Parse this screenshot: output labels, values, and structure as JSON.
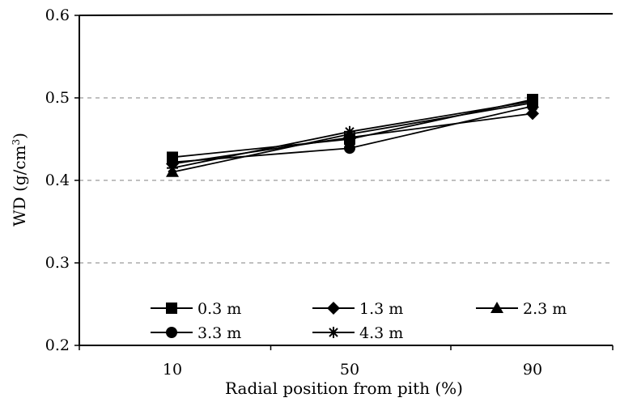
{
  "chart_data": {
    "type": "line",
    "xlabel": "Radial position from pith (%)",
    "ylabel": "WD (g/cm",
    "ylabel_sup": "3",
    "ylabel_close": ")",
    "categories": [
      "10",
      "50",
      "90"
    ],
    "ylim": [
      0.2,
      0.6
    ],
    "yticks": [
      0.2,
      0.3,
      0.4,
      0.5,
      0.6
    ],
    "ytick_labels": [
      "0.2",
      "0.3",
      "0.4",
      "0.5",
      "0.6"
    ],
    "grid": "horizontal dashed",
    "legend_position": "bottom",
    "series": [
      {
        "name": "0.3 m",
        "marker": "square",
        "values": [
          0.428,
          0.45,
          0.498
        ]
      },
      {
        "name": "1.3 m",
        "marker": "diamond",
        "values": [
          0.42,
          0.452,
          0.481
        ]
      },
      {
        "name": "2.3 m",
        "marker": "triangle",
        "values": [
          0.41,
          0.456,
          0.494
        ]
      },
      {
        "name": "3.3 m",
        "marker": "circle",
        "values": [
          0.422,
          0.439,
          0.49
        ]
      },
      {
        "name": "4.3 m",
        "marker": "star",
        "values": [
          0.415,
          0.459,
          0.496
        ]
      }
    ],
    "colors": {
      "line": "#000000",
      "grid": "#9a9a9a",
      "background": "#ffffff"
    }
  }
}
